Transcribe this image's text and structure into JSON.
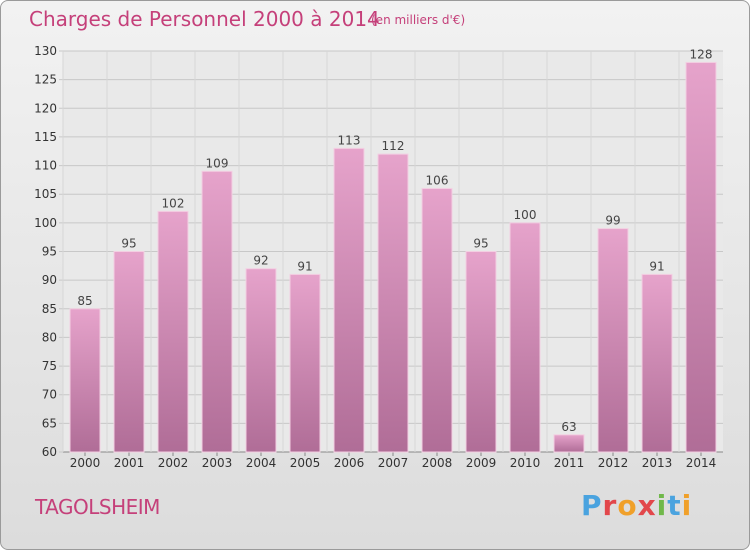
{
  "header": {
    "title": "Charges de Personnel 2000 à 2014",
    "unit": "(en milliers d'€)"
  },
  "footer": {
    "city": "TAGOLSHEIM",
    "logo": [
      "P",
      "r",
      "o",
      "x",
      "i",
      "t",
      "i"
    ]
  },
  "colors": {
    "title": "#c5407a",
    "bar_top": "#e6a3cb",
    "bar_bottom": "#b06d97",
    "logo": [
      "#4aa3df",
      "#e2474b",
      "#f0a02a",
      "#e2474b",
      "#70b84a",
      "#4aa3df",
      "#f0a02a"
    ]
  },
  "chart_data": {
    "type": "bar",
    "title": "Charges de Personnel 2000 à 2014",
    "subtitle": "(en milliers d'€)",
    "categories": [
      "2000",
      "2001",
      "2002",
      "2003",
      "2004",
      "2005",
      "2006",
      "2007",
      "2008",
      "2009",
      "2010",
      "2011",
      "2012",
      "2013",
      "2014"
    ],
    "values": [
      85,
      95,
      102,
      109,
      92,
      91,
      113,
      112,
      106,
      95,
      100,
      63,
      99,
      91,
      128
    ],
    "ylim": [
      60,
      130
    ],
    "yticks": [
      60,
      65,
      70,
      75,
      80,
      85,
      90,
      95,
      100,
      105,
      110,
      115,
      120,
      125,
      130
    ],
    "grid": true,
    "legend": "none"
  }
}
